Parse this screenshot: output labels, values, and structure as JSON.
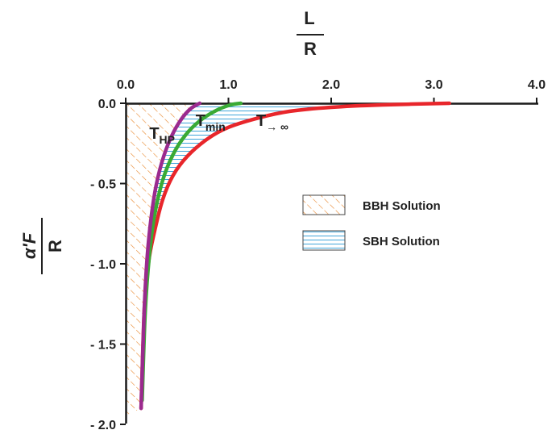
{
  "chart_data": {
    "type": "line",
    "x_axis_label": {
      "top": "L",
      "bottom": "R"
    },
    "y_axis_label": {
      "top": "α'F",
      "bottom": "R"
    },
    "xlim": [
      0,
      4
    ],
    "ylim": [
      -2,
      0
    ],
    "x_ticks": [
      "0.0",
      "1.0",
      "2.0",
      "3.0",
      "4.0"
    ],
    "y_ticks": [
      "0.0",
      "- 0.5",
      "- 1.0",
      "- 1.5",
      "- 2.0"
    ],
    "grid": false,
    "series": [
      {
        "name": "T→∞",
        "color": "#e8262b",
        "points": [
          [
            0.15,
            -1.9
          ],
          [
            0.18,
            -1.3
          ],
          [
            0.22,
            -1.0
          ],
          [
            0.28,
            -0.8
          ],
          [
            0.36,
            -0.6
          ],
          [
            0.46,
            -0.45
          ],
          [
            0.6,
            -0.33
          ],
          [
            0.8,
            -0.22
          ],
          [
            1.0,
            -0.15
          ],
          [
            1.3,
            -0.09
          ],
          [
            1.6,
            -0.05
          ],
          [
            2.0,
            -0.025
          ],
          [
            2.5,
            -0.01
          ],
          [
            3.15,
            0.0
          ]
        ]
      },
      {
        "name": "Tmin",
        "color": "#3aaa35",
        "points": [
          [
            0.16,
            -1.85
          ],
          [
            0.19,
            -1.3
          ],
          [
            0.23,
            -0.95
          ],
          [
            0.28,
            -0.7
          ],
          [
            0.36,
            -0.48
          ],
          [
            0.46,
            -0.32
          ],
          [
            0.58,
            -0.2
          ],
          [
            0.72,
            -0.11
          ],
          [
            0.88,
            -0.045
          ],
          [
            1.02,
            -0.01
          ],
          [
            1.12,
            0.0
          ]
        ]
      },
      {
        "name": "THP",
        "color": "#9b2a8e",
        "points": [
          [
            0.15,
            -1.9
          ],
          [
            0.18,
            -1.3
          ],
          [
            0.21,
            -0.95
          ],
          [
            0.25,
            -0.7
          ],
          [
            0.3,
            -0.5
          ],
          [
            0.37,
            -0.33
          ],
          [
            0.45,
            -0.2
          ],
          [
            0.54,
            -0.1
          ],
          [
            0.63,
            -0.035
          ],
          [
            0.72,
            0.0
          ]
        ]
      }
    ],
    "regions": [
      {
        "name": "BBH Solution",
        "pattern": "diagonal-hatch",
        "color": "#e8862a"
      },
      {
        "name": "SBH Solution",
        "pattern": "horizontal-lines",
        "color": "#2a9bd6"
      }
    ],
    "annotations": [
      {
        "text": "T",
        "sub": "HP",
        "x": 0.23,
        "y": -0.22
      },
      {
        "text": "T",
        "sub": "min",
        "x": 0.68,
        "y": -0.14
      },
      {
        "text": "T",
        "sub": "→ ∞",
        "x": 1.27,
        "y": -0.14
      }
    ],
    "legend": {
      "placement": "right-middle",
      "items": [
        {
          "label": "BBH Solution",
          "pattern": "diagonal-hatch"
        },
        {
          "label": "SBH Solution",
          "pattern": "horizontal-lines"
        }
      ]
    }
  }
}
